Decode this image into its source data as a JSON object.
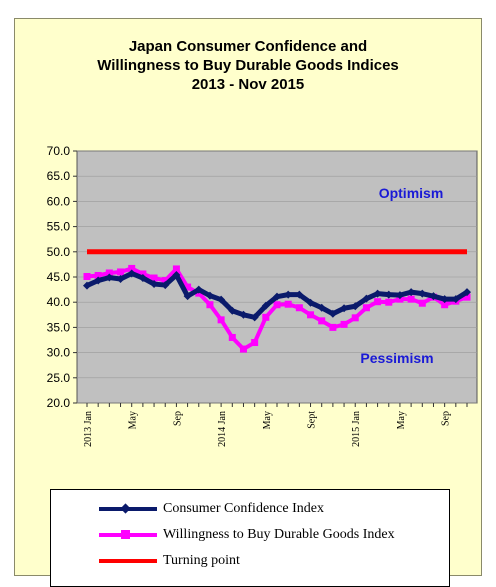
{
  "chart_data": {
    "type": "line",
    "title": [
      "Japan Consumer Confidence and",
      "Willingness to Buy Durable Goods Indices",
      "2013 - Nov  2015"
    ],
    "ylim": [
      20,
      70
    ],
    "yticks": [
      "70.0",
      "65.0",
      "60.0",
      "55.0",
      "50.0",
      "45.0",
      "40.0",
      "35.0",
      "30.0",
      "25.0",
      "20.0"
    ],
    "xlabels": [
      {
        "index": 0,
        "label": "2013 Jan"
      },
      {
        "index": 4,
        "label": "May"
      },
      {
        "index": 8,
        "label": "Sep"
      },
      {
        "index": 12,
        "label": "2014 Jan"
      },
      {
        "index": 16,
        "label": "May"
      },
      {
        "index": 20,
        "label": "Sept"
      },
      {
        "index": 24,
        "label": "2015 Jan"
      },
      {
        "index": 28,
        "label": "May"
      },
      {
        "index": 32,
        "label": "Sep"
      }
    ],
    "x": [
      "2013-01",
      "2013-02",
      "2013-03",
      "2013-04",
      "2013-05",
      "2013-06",
      "2013-07",
      "2013-08",
      "2013-09",
      "2013-10",
      "2013-11",
      "2013-12",
      "2014-01",
      "2014-02",
      "2014-03",
      "2014-04",
      "2014-05",
      "2014-06",
      "2014-07",
      "2014-08",
      "2014-09",
      "2014-10",
      "2014-11",
      "2014-12",
      "2015-01",
      "2015-02",
      "2015-03",
      "2015-04",
      "2015-05",
      "2015-06",
      "2015-07",
      "2015-08",
      "2015-09",
      "2015-10",
      "2015-11"
    ],
    "series": [
      {
        "name": "Consumer Confidence Index",
        "color": "#0a1a6b",
        "marker": "diamond",
        "values": [
          43.3,
          44.3,
          44.9,
          44.6,
          45.7,
          44.8,
          43.6,
          43.4,
          45.4,
          41.2,
          42.5,
          41.3,
          40.5,
          38.3,
          37.5,
          37.0,
          39.3,
          41.1,
          41.5,
          41.5,
          39.9,
          38.9,
          37.7,
          38.8,
          39.2,
          40.7,
          41.7,
          41.5,
          41.4,
          42.0,
          41.7,
          41.2,
          40.6,
          40.6,
          42.0
        ]
      },
      {
        "name": "Willingness to Buy Durable Goods Index",
        "color": "#ff00ff",
        "marker": "square",
        "values": [
          45.1,
          45.3,
          45.8,
          46.0,
          46.7,
          45.6,
          44.8,
          44.3,
          46.6,
          43.0,
          41.8,
          39.5,
          36.5,
          33.0,
          30.7,
          32.0,
          37.0,
          39.5,
          39.6,
          38.9,
          37.5,
          36.3,
          35.0,
          35.6,
          36.9,
          38.9,
          40.1,
          40.0,
          40.6,
          40.6,
          39.8,
          41.0,
          39.5,
          40.2,
          41.0
        ]
      },
      {
        "name": "Turning point",
        "color": "#ff0000",
        "values": [
          50,
          50,
          50,
          50,
          50,
          50,
          50,
          50,
          50,
          50,
          50,
          50,
          50,
          50,
          50,
          50,
          50,
          50,
          50,
          50,
          50,
          50,
          50,
          50,
          50,
          50,
          50,
          50,
          50,
          50,
          50,
          50,
          50,
          50,
          50
        ]
      }
    ],
    "annotations": [
      "Optimism",
      "Pessimism"
    ],
    "plot_background": "#c0c0c0",
    "annotation_color": "#1a1ad6"
  }
}
